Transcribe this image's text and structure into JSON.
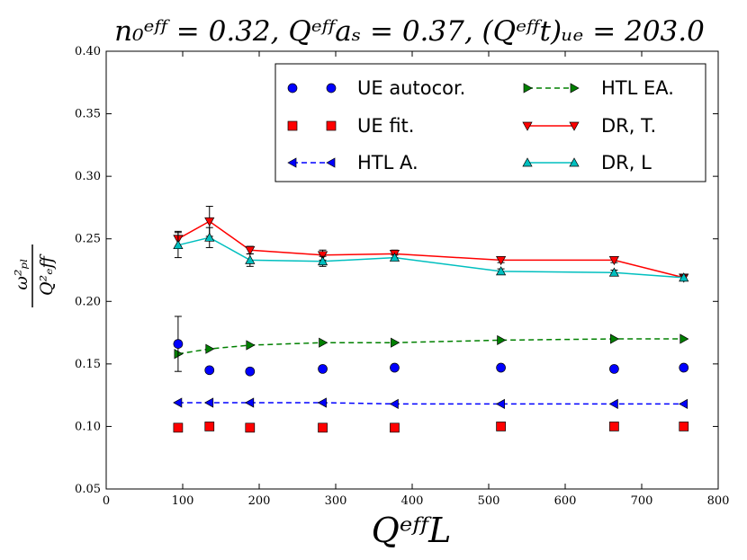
{
  "chart_data": {
    "type": "line",
    "title": "n₀ᵉᶠᶠ = 0.32, Qᵉᶠᶠaₛ = 0.37, (Qᵉᶠᶠt)ᵤₑ = 203.0",
    "xlabel": "QᵉᶠᶠL",
    "ylabel_num": "ω²ₚₗ",
    "ylabel_den": "Q²ₑff",
    "xlim": [
      0,
      800
    ],
    "ylim": [
      0.05,
      0.4
    ],
    "xticks": [
      0,
      100,
      200,
      300,
      400,
      500,
      600,
      700,
      800
    ],
    "yticks": [
      0.05,
      0.1,
      0.15,
      0.2,
      0.25,
      0.3,
      0.35,
      0.4
    ],
    "legend_position": "top-right",
    "x": [
      94,
      135,
      188,
      283,
      377,
      516,
      664,
      755
    ],
    "series": [
      {
        "name": "UE autocor.",
        "color": "#0000ff",
        "marker": "circle",
        "line": "none",
        "values": [
          0.166,
          0.145,
          0.144,
          0.146,
          0.147,
          0.147,
          0.146,
          0.147
        ],
        "errors": [
          0.022,
          0,
          0,
          0,
          0,
          0,
          0,
          0
        ]
      },
      {
        "name": "UE fit.",
        "color": "#ff0000",
        "marker": "square",
        "line": "none",
        "values": [
          0.099,
          0.1,
          0.099,
          0.099,
          0.099,
          0.1,
          0.1,
          0.1
        ],
        "errors": [
          0,
          0,
          0,
          0,
          0,
          0,
          0,
          0
        ]
      },
      {
        "name": "HTL A.",
        "color": "#0000ff",
        "marker": "tri-left",
        "line": "dashed",
        "values": [
          0.119,
          0.119,
          0.119,
          0.119,
          0.118,
          0.118,
          0.118,
          0.118
        ],
        "errors": [
          0,
          0,
          0,
          0,
          0,
          0,
          0,
          0
        ]
      },
      {
        "name": "HTL EA.",
        "color": "#008000",
        "marker": "tri-right",
        "line": "dashed",
        "values": [
          0.158,
          0.162,
          0.165,
          0.167,
          0.167,
          0.169,
          0.17,
          0.17
        ],
        "errors": [
          0,
          0,
          0,
          0,
          0,
          0,
          0,
          0
        ]
      },
      {
        "name": "DR, T.",
        "color": "#ff0000",
        "marker": "tri-down",
        "line": "solid",
        "values": [
          0.25,
          0.264,
          0.241,
          0.237,
          0.238,
          0.233,
          0.233,
          0.219
        ],
        "errors": [
          0.006,
          0.012,
          0.003,
          0.004,
          0.003,
          0.002,
          0.002,
          0.002
        ]
      },
      {
        "name": "DR, L",
        "color": "#00bfbf",
        "marker": "tri-up",
        "line": "solid",
        "values": [
          0.245,
          0.251,
          0.233,
          0.232,
          0.235,
          0.224,
          0.223,
          0.219
        ],
        "errors": [
          0.01,
          0.008,
          0.005,
          0.004,
          0.002,
          0.002,
          0.002,
          0.002
        ]
      }
    ],
    "legend_order": [
      0,
      3,
      1,
      4,
      2,
      5
    ]
  }
}
